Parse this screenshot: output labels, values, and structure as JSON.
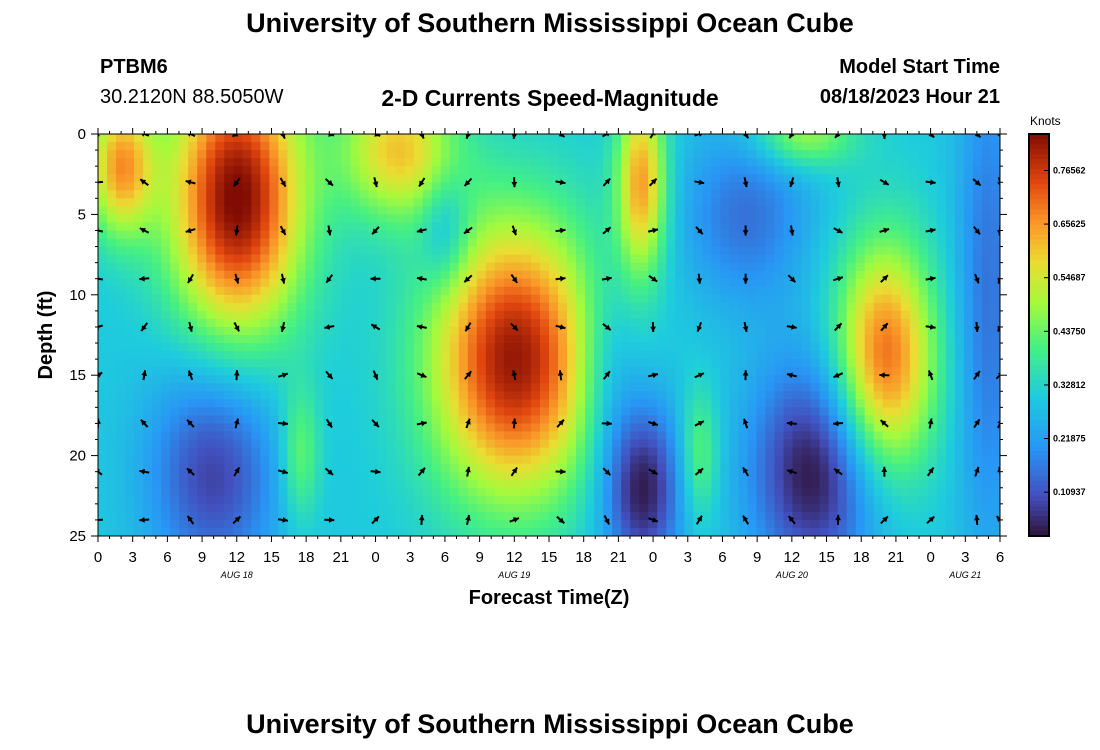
{
  "header": {
    "title": "University of Southern Mississippi Ocean Cube",
    "station_id": "PTBM6",
    "coordinates": "30.2120N  88.5050W",
    "subtitle": "2-D Currents Speed-Magnitude",
    "model_start_label": "Model Start Time",
    "model_start_value": "08/18/2023 Hour 21"
  },
  "footer": {
    "title": "University of Southern Mississippi Ocean Cube"
  },
  "chart_data": {
    "type": "heatmap",
    "title": "2-D Currents Speed-Magnitude",
    "xlabel": "Forecast Time(Z)",
    "ylabel": "Depth (ft)",
    "x_ticks": [
      "0",
      "3",
      "6",
      "9",
      "12",
      "15",
      "18",
      "21",
      "0",
      "3",
      "6",
      "9",
      "12",
      "15",
      "18",
      "21",
      "0",
      "3",
      "6",
      "9",
      "12",
      "15",
      "18",
      "21",
      "0",
      "3",
      "6"
    ],
    "date_labels": [
      {
        "label": "AUG 18",
        "tick_index": 4
      },
      {
        "label": "AUG 19",
        "tick_index": 12
      },
      {
        "label": "AUG 20",
        "tick_index": 20
      },
      {
        "label": "AUG 21",
        "tick_index": 25
      }
    ],
    "y_ticks": [
      0,
      5,
      10,
      15,
      20,
      25
    ],
    "ylim": [
      0,
      25
    ],
    "x_range_hours": [
      0,
      78
    ],
    "colorbar": {
      "label": "Knots",
      "min": 0.02,
      "max": 0.84,
      "tick_values": [
        "0.76562",
        "0.65625",
        "0.54687",
        "0.43750",
        "0.32812",
        "0.21875",
        "0.10937"
      ],
      "tick_numbers": [
        0.76562,
        0.65625,
        0.54687,
        0.4375,
        0.32812,
        0.21875,
        0.10937
      ]
    },
    "field": {
      "base": 0.3,
      "blobs": [
        {
          "t": 12,
          "d": 4,
          "st": 4,
          "sd": 6,
          "a": 0.55
        },
        {
          "t": 2,
          "d": 2,
          "st": 2,
          "sd": 3,
          "a": 0.35
        },
        {
          "t": 36,
          "d": 14,
          "st": 5,
          "sd": 6,
          "a": 0.52
        },
        {
          "t": 26,
          "d": 1,
          "st": 3.5,
          "sd": 3,
          "a": 0.3
        },
        {
          "t": 47,
          "d": 3,
          "st": 1.5,
          "sd": 4,
          "a": 0.35
        },
        {
          "t": 68,
          "d": 14,
          "st": 3,
          "sd": 5,
          "a": 0.42
        },
        {
          "t": 61,
          "d": 0,
          "st": 3,
          "sd": 1.5,
          "a": 0.2
        },
        {
          "t": 17.5,
          "d": 20,
          "st": 1.2,
          "sd": 3,
          "a": 0.15
        },
        {
          "t": 52,
          "d": 20,
          "st": 1.2,
          "sd": 3,
          "a": 0.15
        },
        {
          "t": 10,
          "d": 21,
          "st": 4,
          "sd": 5,
          "a": -0.22
        },
        {
          "t": 47,
          "d": 22,
          "st": 2.5,
          "sd": 4,
          "a": -0.28
        },
        {
          "t": 62,
          "d": 21,
          "st": 4,
          "sd": 5,
          "a": -0.28
        },
        {
          "t": 56,
          "d": 5,
          "st": 4,
          "sd": 4,
          "a": -0.15
        },
        {
          "t": 30,
          "d": 6,
          "st": 1.5,
          "sd": 2.5,
          "a": -0.12
        },
        {
          "t": 77,
          "d": 10,
          "st": 2,
          "sd": 12,
          "a": -0.15
        },
        {
          "t": 44,
          "d": 14,
          "st": 2,
          "sd": 4,
          "a": -0.1
        }
      ]
    },
    "arrows": {
      "times": [
        0,
        4,
        8,
        12,
        16,
        20,
        24,
        28,
        32,
        36,
        40,
        44,
        48,
        52,
        56,
        60,
        64,
        68,
        72,
        76,
        78
      ],
      "depths": [
        0,
        3,
        6,
        9,
        12,
        15,
        18,
        21,
        24
      ]
    }
  }
}
